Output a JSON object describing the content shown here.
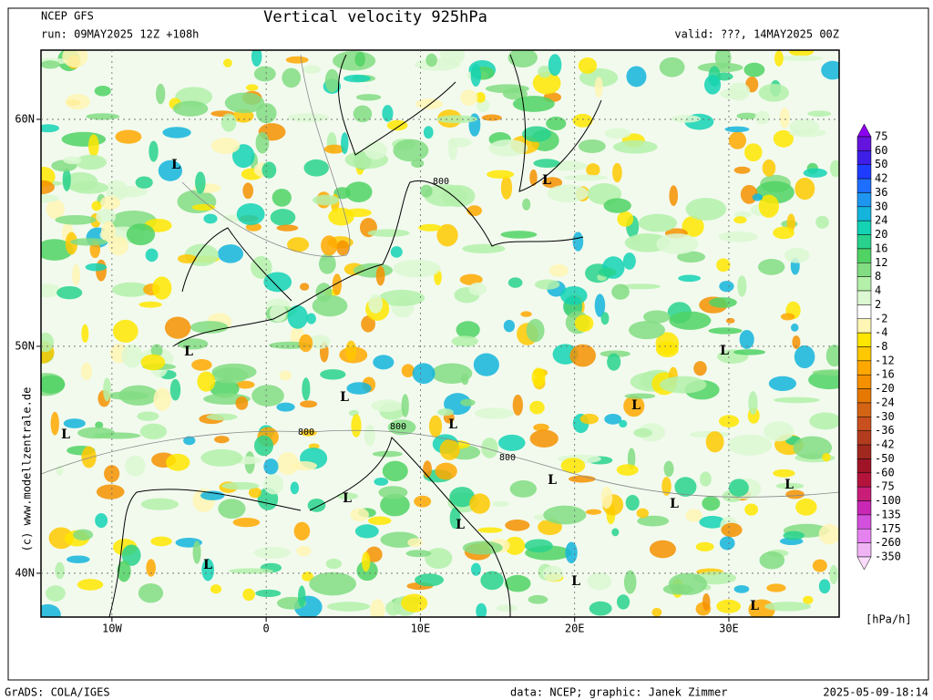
{
  "header": {
    "model": "NCEP GFS",
    "run": "run: 09MAY2025 12Z +108h",
    "title": "Vertical velocity 925hPa",
    "valid": "valid: ???, 14MAY2025 00Z"
  },
  "map": {
    "xlim": [
      -14.6,
      37.15
    ],
    "ylim": [
      38.07,
      63.05
    ],
    "lon_ticks": [
      {
        "value": -10,
        "label": "10W"
      },
      0,
      {
        "value": 10,
        "label": "10E"
      },
      {
        "value": 20,
        "label": "20E"
      },
      {
        "value": 30,
        "label": "30E"
      }
    ],
    "lat_ticks": [
      {
        "value": 60,
        "label": "60N"
      },
      {
        "value": 50,
        "label": "50N"
      },
      {
        "value": 40,
        "label": "40N"
      }
    ],
    "lows": [
      "L",
      "L",
      "L",
      "L",
      "L",
      "L",
      "L",
      "L",
      "L",
      "L",
      "L",
      "L",
      "L",
      "L",
      "L",
      "L"
    ],
    "contour_labels": [
      "800",
      "800",
      "800",
      "800"
    ],
    "watermark": "(c) www.modellzentrale.de"
  },
  "legend": {
    "levels": [
      75,
      60,
      50,
      42,
      36,
      30,
      24,
      20,
      16,
      12,
      8,
      4,
      2,
      -2,
      -4,
      -8,
      -12,
      -16,
      -20,
      -24,
      -30,
      -36,
      -42,
      -50,
      -60,
      -75,
      -100,
      -135,
      -175,
      -260,
      -350
    ],
    "colors": [
      "#8c00f0",
      "#6414dc",
      "#3c1ee6",
      "#1e3cff",
      "#1e6eff",
      "#1e96f0",
      "#14b4dc",
      "#14d2b4",
      "#28d28c",
      "#50d264",
      "#82dc82",
      "#b4f0aa",
      "#dcf8d2",
      "#ffffff",
      "#fff5b4",
      "#ffe600",
      "#ffc800",
      "#ffa800",
      "#f59000",
      "#e67800",
      "#d26414",
      "#c8501e",
      "#b43c1e",
      "#a0281e",
      "#a01428",
      "#b4143c",
      "#c81e78",
      "#c828b4",
      "#d250dc",
      "#e682f0",
      "#f0b4f5",
      "#fadcfa"
    ],
    "unit": "[hPa/h]"
  },
  "footer": {
    "left": "GrADS: COLA/IGES",
    "center": "data: NCEP; graphic: Janek Zimmer",
    "right": "2025-05-09-18:14"
  }
}
